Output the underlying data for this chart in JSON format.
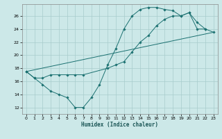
{
  "xlabel": "Humidex (Indice chaleur)",
  "xlim": [
    -0.5,
    23.5
  ],
  "ylim": [
    11,
    27.8
  ],
  "yticks": [
    12,
    14,
    16,
    18,
    20,
    22,
    24,
    26
  ],
  "xticks": [
    0,
    1,
    2,
    3,
    4,
    5,
    6,
    7,
    8,
    9,
    10,
    11,
    12,
    13,
    14,
    15,
    16,
    17,
    18,
    19,
    20,
    21,
    22,
    23
  ],
  "bg_color": "#cce8e8",
  "grid_color": "#a8cccc",
  "line_color": "#1a7070",
  "series": [
    {
      "x": [
        0,
        1,
        2,
        3,
        4,
        5,
        6,
        7,
        8,
        9,
        10,
        11,
        12,
        13,
        14,
        15,
        16,
        17,
        18,
        19,
        20,
        21,
        22
      ],
      "y": [
        17.5,
        16.5,
        15.5,
        14.5,
        14.0,
        13.5,
        12.0,
        12.0,
        13.5,
        15.5,
        18.5,
        21.0,
        24.0,
        26.0,
        27.0,
        27.3,
        27.3,
        27.0,
        26.8,
        26.0,
        26.5,
        24.0,
        24.0
      ],
      "marker": true
    },
    {
      "x": [
        0,
        1,
        2,
        3,
        4,
        5,
        6,
        7,
        10,
        11,
        12,
        13,
        14,
        15,
        16,
        17,
        18,
        19,
        20,
        21,
        22,
        23
      ],
      "y": [
        17.5,
        16.5,
        16.5,
        17.0,
        17.0,
        17.0,
        17.0,
        17.0,
        18.0,
        18.5,
        19.0,
        20.5,
        22.0,
        23.0,
        24.5,
        25.5,
        26.0,
        26.0,
        26.5,
        25.0,
        24.0,
        23.5
      ],
      "marker": true
    },
    {
      "x": [
        0,
        23
      ],
      "y": [
        17.5,
        23.5
      ],
      "marker": false
    }
  ]
}
